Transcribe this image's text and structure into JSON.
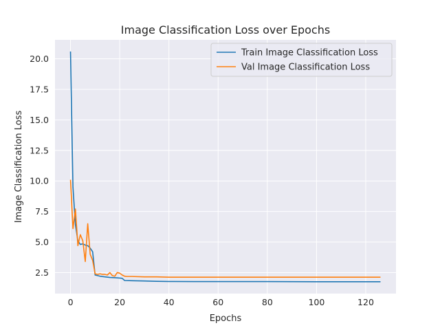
{
  "chart_data": {
    "type": "line",
    "title": "Image Classification Loss over Epochs",
    "xlabel": "Epochs",
    "ylabel": "Image Classification Loss",
    "xlim": [
      -6.3,
      132.3
    ],
    "ylim": [
      0.78,
      21.55
    ],
    "xticks": [
      0,
      20,
      40,
      60,
      80,
      100,
      120
    ],
    "xtick_labels": [
      "0",
      "20",
      "40",
      "60",
      "80",
      "100",
      "120"
    ],
    "yticks": [
      2.5,
      5.0,
      7.5,
      10.0,
      12.5,
      15.0,
      17.5,
      20.0
    ],
    "ytick_labels": [
      "2.5",
      "5.0",
      "7.5",
      "10.0",
      "12.5",
      "15.0",
      "17.5",
      "20.0"
    ],
    "grid": true,
    "legend_position": "top-right",
    "background": "#eaeaf2",
    "series": [
      {
        "name": "Train Image Classification Loss",
        "color": "#1f77b4",
        "x": [
          0,
          1,
          2,
          3,
          4,
          5,
          6,
          7,
          8,
          9,
          10,
          12,
          14,
          16,
          18,
          20,
          21,
          22,
          25,
          30,
          35,
          40,
          50,
          60,
          80,
          100,
          120,
          126
        ],
        "y": [
          20.6,
          9.5,
          6.4,
          5.1,
          4.8,
          4.85,
          4.75,
          4.7,
          4.5,
          4.2,
          2.3,
          2.2,
          2.15,
          2.1,
          2.08,
          2.05,
          2.03,
          1.85,
          1.83,
          1.81,
          1.78,
          1.77,
          1.76,
          1.76,
          1.76,
          1.75,
          1.75,
          1.75
        ]
      },
      {
        "name": "Val Image Classification Loss",
        "color": "#ff7f0e",
        "x": [
          0,
          1,
          2,
          3,
          4,
          5,
          6,
          7,
          8,
          9,
          10,
          11,
          12,
          13,
          14,
          15,
          16,
          17,
          18,
          19,
          20,
          21,
          22,
          23,
          25,
          30,
          35,
          40,
          50,
          60,
          80,
          100,
          120,
          126
        ],
        "y": [
          10.1,
          6.1,
          7.7,
          4.7,
          5.6,
          5.1,
          3.4,
          6.5,
          4.0,
          3.5,
          2.4,
          2.35,
          2.4,
          2.35,
          2.35,
          2.3,
          2.5,
          2.25,
          2.2,
          2.5,
          2.45,
          2.3,
          2.2,
          2.18,
          2.18,
          2.15,
          2.15,
          2.12,
          2.12,
          2.12,
          2.12,
          2.12,
          2.12,
          2.12
        ]
      }
    ]
  }
}
